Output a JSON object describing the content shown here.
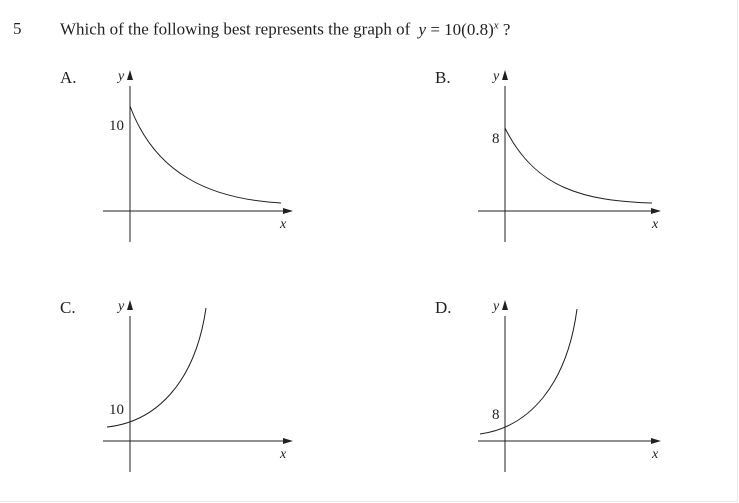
{
  "question": {
    "number": "5",
    "text": "Which of the following best represents the graph of",
    "equation_lhs": "y",
    "equation_eq": " = 10(0.8)",
    "equation_exp": "x",
    "equation_tail": " ?"
  },
  "options": [
    {
      "letter": "A.",
      "intercept_label": "10",
      "y_label": "y",
      "x_label": "x",
      "curve": "decay"
    },
    {
      "letter": "B.",
      "intercept_label": "8",
      "y_label": "y",
      "x_label": "x",
      "curve": "decay"
    },
    {
      "letter": "C.",
      "intercept_label": "10",
      "y_label": "y",
      "x_label": "x",
      "curve": "growth"
    },
    {
      "letter": "D.",
      "intercept_label": "8",
      "y_label": "y",
      "x_label": "x",
      "curve": "growth"
    }
  ]
}
